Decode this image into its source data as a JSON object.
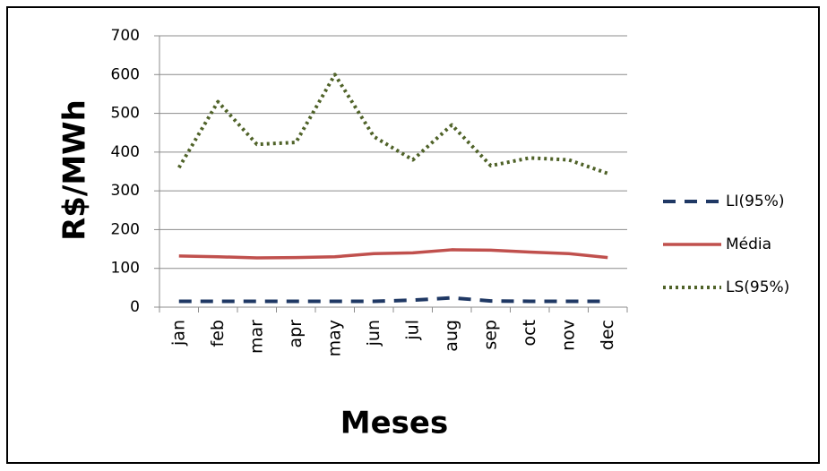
{
  "chart_data": {
    "type": "line",
    "x_label": "Meses",
    "y_label": "R$/MWh",
    "categories": [
      "jan",
      "feb",
      "mar",
      "apr",
      "may",
      "jun",
      "jul",
      "aug",
      "sep",
      "oct",
      "nov",
      "dec"
    ],
    "series": [
      {
        "name": "LI(95%)",
        "color": "#1f3864",
        "dash": "dashed",
        "values": [
          15,
          15,
          15,
          15,
          15,
          15,
          18,
          24,
          16,
          15,
          15,
          15
        ]
      },
      {
        "name": "Média",
        "color": "#c0504d",
        "dash": "solid",
        "values": [
          132,
          130,
          127,
          128,
          130,
          138,
          140,
          148,
          147,
          142,
          138,
          128
        ]
      },
      {
        "name": "LS(95%)",
        "color": "#4f6228",
        "dash": "dotted",
        "values": [
          360,
          530,
          420,
          425,
          600,
          440,
          380,
          470,
          365,
          385,
          380,
          345
        ]
      }
    ],
    "ylim": [
      0,
      700
    ],
    "yticks": [
      0,
      100,
      200,
      300,
      400,
      500,
      600,
      700
    ],
    "grid": true,
    "legend": "right"
  }
}
